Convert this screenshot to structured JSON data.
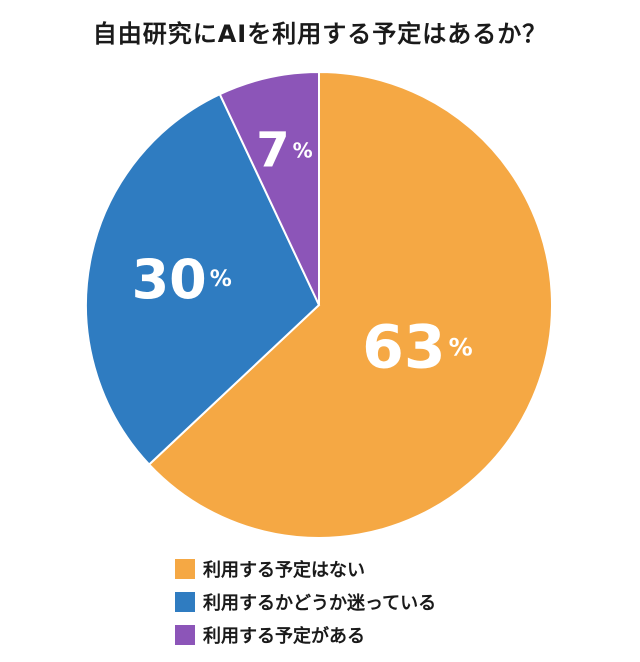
{
  "title": "自由研究にAIを利用する予定はあるか？",
  "chart_data": {
    "type": "pie",
    "title": "自由研究にAIを利用する予定はあるか？",
    "unit": "%",
    "slices": [
      {
        "label": "利用する予定はない",
        "value": 63,
        "color": "#F5A844"
      },
      {
        "label": "利用するかどうか迷っている",
        "value": 30,
        "color": "#2F7CC1"
      },
      {
        "label": "利用する予定がある",
        "value": 7,
        "color": "#8C55B8"
      }
    ],
    "start": "12 o'clock",
    "direction": "clockwise",
    "legend_position": "bottom"
  }
}
